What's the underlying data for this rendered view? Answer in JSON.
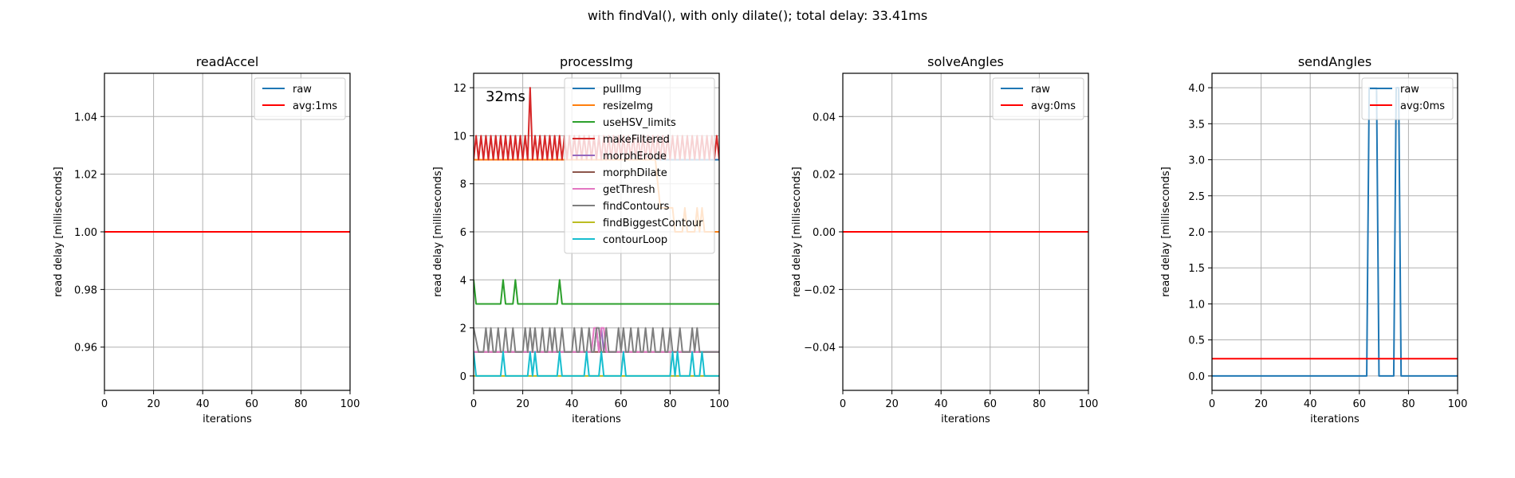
{
  "suptitle": "with findVal(), with only dilate(); total delay: 33.41ms",
  "chart_data": [
    {
      "type": "line",
      "title": "readAccel",
      "xlabel": "iterations",
      "ylabel": "read delay [milliseconds]",
      "xlim": [
        0,
        100
      ],
      "ylim": [
        0.945,
        1.055
      ],
      "xticks": [
        "0",
        "20",
        "40",
        "60",
        "80",
        "100"
      ],
      "yticks": [
        "0.96",
        "0.98",
        "1.00",
        "1.02",
        "1.04"
      ],
      "grid": true,
      "legend_position": "upper right",
      "series": [
        {
          "name": "raw",
          "color": "#1f77b4",
          "x": [
            0,
            100
          ],
          "y": [
            1.0,
            1.0
          ]
        },
        {
          "name": "avg:1ms",
          "color": "#ff0000",
          "x": [
            0,
            100
          ],
          "y": [
            1.0,
            1.0
          ]
        }
      ]
    },
    {
      "type": "line",
      "title": "processImg",
      "xlabel": "iterations",
      "ylabel": "read delay [milliseconds]",
      "xlim": [
        0,
        100
      ],
      "ylim": [
        -0.6,
        12.6
      ],
      "xticks": [
        "0",
        "20",
        "40",
        "60",
        "80",
        "100"
      ],
      "yticks": [
        "0",
        "2",
        "4",
        "6",
        "8",
        "10",
        "12"
      ],
      "grid": true,
      "legend_position": "upper right",
      "annotation": "32ms",
      "series": [
        {
          "name": "pullImg",
          "color": "#1f77b4",
          "x": [
            0,
            100
          ],
          "y": [
            9,
            9
          ]
        },
        {
          "name": "resizeImg",
          "color": "#ff7f0e",
          "x": [
            0,
            74,
            75,
            76,
            77,
            78,
            79,
            80,
            81,
            82,
            83,
            84,
            85,
            86,
            87,
            88,
            89,
            90,
            91,
            92,
            93,
            94,
            95,
            100
          ],
          "y": [
            9,
            9,
            8,
            7,
            7,
            7,
            7,
            7,
            7,
            6,
            6,
            6,
            6,
            7,
            6,
            6,
            6,
            6,
            7,
            6,
            7,
            6,
            6,
            6
          ]
        },
        {
          "name": "useHSV_limits",
          "color": "#2ca02c",
          "x": [
            0,
            1,
            2,
            11,
            12,
            13,
            16,
            17,
            18,
            34,
            35,
            36,
            100
          ],
          "y": [
            4,
            3,
            3,
            3,
            4,
            3,
            3,
            4,
            3,
            3,
            4,
            3,
            3
          ]
        },
        {
          "name": "makeFiltered",
          "color": "#d62728",
          "x": [
            0,
            1,
            2,
            3,
            4,
            5,
            6,
            7,
            8,
            9,
            10,
            11,
            12,
            13,
            14,
            15,
            16,
            17,
            18,
            19,
            20,
            21,
            22,
            23,
            24,
            25,
            26,
            27,
            28,
            29,
            30,
            31,
            32,
            33,
            34,
            35,
            36,
            37,
            38,
            39,
            40,
            41,
            42,
            43,
            44,
            45,
            46,
            47,
            48,
            49,
            50,
            51,
            52,
            53,
            54,
            55,
            56,
            57,
            58,
            59,
            60,
            61,
            62,
            63,
            64,
            65,
            66,
            67,
            68,
            69,
            70,
            71,
            72,
            73,
            74,
            75,
            76,
            77,
            78,
            79,
            80,
            81,
            82,
            83,
            84,
            85,
            86,
            87,
            88,
            89,
            90,
            91,
            92,
            93,
            94,
            95,
            96,
            97,
            98,
            99,
            100
          ],
          "y": [
            9,
            10,
            9,
            10,
            9,
            10,
            9,
            10,
            9,
            10,
            9,
            10,
            9,
            10,
            9,
            10,
            9,
            10,
            9,
            10,
            9,
            10,
            9,
            12,
            9,
            10,
            9,
            10,
            9,
            10,
            9,
            10,
            9,
            10,
            9,
            10,
            9,
            10,
            9,
            10,
            9,
            10,
            9,
            10,
            9,
            10,
            9,
            10,
            9,
            10,
            9,
            10,
            9,
            10,
            9,
            10,
            9,
            10,
            9,
            10,
            9,
            10,
            9,
            10,
            9,
            10,
            9,
            10,
            9,
            10,
            9,
            10,
            9,
            10,
            9,
            10,
            9,
            10,
            9,
            10,
            9,
            10,
            9,
            10,
            9,
            10,
            9,
            10,
            9,
            10,
            9,
            10,
            9,
            10,
            9,
            10,
            9,
            10,
            9,
            10,
            9
          ]
        },
        {
          "name": "morphErode",
          "color": "#9467bd",
          "x": [
            0,
            49,
            50,
            51,
            52,
            53,
            54,
            100
          ],
          "y": [
            1,
            1,
            2,
            1,
            2,
            1,
            1,
            1
          ]
        },
        {
          "name": "morphDilate",
          "color": "#8c564b",
          "x": [
            0,
            100
          ],
          "y": [
            1,
            1
          ]
        },
        {
          "name": "getThresh",
          "color": "#e377c2",
          "x": [
            0,
            48,
            49,
            50,
            51,
            52,
            53,
            54,
            100
          ],
          "y": [
            1,
            1,
            2,
            2,
            1,
            2,
            2,
            1,
            1
          ]
        },
        {
          "name": "findContours",
          "color": "#7f7f7f",
          "x": [
            0,
            2,
            4,
            5,
            6,
            7,
            8,
            9,
            10,
            11,
            12,
            13,
            14,
            15,
            16,
            17,
            18,
            19,
            20,
            21,
            22,
            23,
            24,
            25,
            26,
            27,
            28,
            29,
            30,
            31,
            32,
            33,
            34,
            35,
            36,
            37,
            38,
            39,
            40,
            41,
            42,
            43,
            44,
            45,
            46,
            47,
            48,
            49,
            50,
            51,
            52,
            53,
            54,
            55,
            56,
            57,
            58,
            59,
            60,
            61,
            62,
            63,
            64,
            65,
            66,
            67,
            68,
            69,
            70,
            71,
            72,
            73,
            74,
            75,
            76,
            77,
            78,
            79,
            80,
            81,
            82,
            83,
            84,
            85,
            86,
            87,
            88,
            89,
            90,
            91,
            92,
            100
          ],
          "y": [
            2,
            1,
            1,
            2,
            1,
            2,
            1,
            1,
            2,
            1,
            1,
            2,
            1,
            1,
            2,
            1,
            1,
            1,
            1,
            2,
            1,
            2,
            1,
            2,
            1,
            1,
            2,
            1,
            1,
            2,
            1,
            2,
            1,
            1,
            2,
            1,
            1,
            1,
            1,
            2,
            1,
            1,
            2,
            1,
            1,
            2,
            1,
            1,
            2,
            2,
            1,
            1,
            2,
            1,
            1,
            1,
            1,
            2,
            1,
            2,
            1,
            1,
            2,
            1,
            1,
            2,
            1,
            1,
            2,
            1,
            1,
            2,
            1,
            1,
            1,
            2,
            1,
            1,
            2,
            1,
            1,
            1,
            2,
            1,
            1,
            1,
            1,
            2,
            1,
            2,
            1,
            1
          ]
        },
        {
          "name": "findBiggestContour",
          "color": "#bcbd22",
          "x": [
            0,
            100
          ],
          "y": [
            0,
            0
          ]
        },
        {
          "name": "contourLoop",
          "color": "#17becf",
          "x": [
            0,
            1,
            11,
            12,
            13,
            22,
            23,
            24,
            25,
            26,
            34,
            35,
            36,
            45,
            46,
            47,
            51,
            52,
            53,
            60,
            61,
            62,
            80,
            81,
            82,
            83,
            84,
            88,
            89,
            90,
            92,
            93,
            94,
            100
          ],
          "y": [
            1,
            0,
            0,
            1,
            0,
            0,
            1,
            0,
            1,
            0,
            0,
            1,
            0,
            0,
            1,
            0,
            0,
            1,
            0,
            0,
            1,
            0,
            0,
            1,
            0,
            1,
            0,
            0,
            1,
            0,
            0,
            1,
            0,
            0
          ]
        }
      ]
    },
    {
      "type": "line",
      "title": "solveAngles",
      "xlabel": "iterations",
      "ylabel": "read delay [milliseconds]",
      "xlim": [
        0,
        100
      ],
      "ylim": [
        -0.055,
        0.055
      ],
      "xticks": [
        "0",
        "20",
        "40",
        "60",
        "80",
        "100"
      ],
      "yticks": [
        "−0.04",
        "−0.02",
        "0.00",
        "0.02",
        "0.04"
      ],
      "grid": true,
      "legend_position": "upper right",
      "series": [
        {
          "name": "raw",
          "color": "#1f77b4",
          "x": [
            0,
            100
          ],
          "y": [
            0,
            0
          ]
        },
        {
          "name": "avg:0ms",
          "color": "#ff0000",
          "x": [
            0,
            100
          ],
          "y": [
            0,
            0
          ]
        }
      ]
    },
    {
      "type": "line",
      "title": "sendAngles",
      "xlabel": "iterations",
      "ylabel": "read delay [milliseconds]",
      "xlim": [
        0,
        100
      ],
      "ylim": [
        -0.2,
        4.2
      ],
      "xticks": [
        "0",
        "20",
        "40",
        "60",
        "80",
        "100"
      ],
      "yticks": [
        "0.0",
        "0.5",
        "1.0",
        "1.5",
        "2.0",
        "2.5",
        "3.0",
        "3.5",
        "4.0"
      ],
      "grid": true,
      "legend_position": "upper right",
      "series": [
        {
          "name": "raw",
          "color": "#1f77b4",
          "x": [
            0,
            63,
            64,
            67,
            68,
            74,
            75,
            76,
            77,
            100
          ],
          "y": [
            0,
            0,
            4,
            4,
            0,
            0,
            4,
            4,
            0,
            0
          ]
        },
        {
          "name": "avg:0ms",
          "color": "#ff0000",
          "x": [
            0,
            100
          ],
          "y": [
            0.24,
            0.24
          ]
        }
      ]
    }
  ]
}
